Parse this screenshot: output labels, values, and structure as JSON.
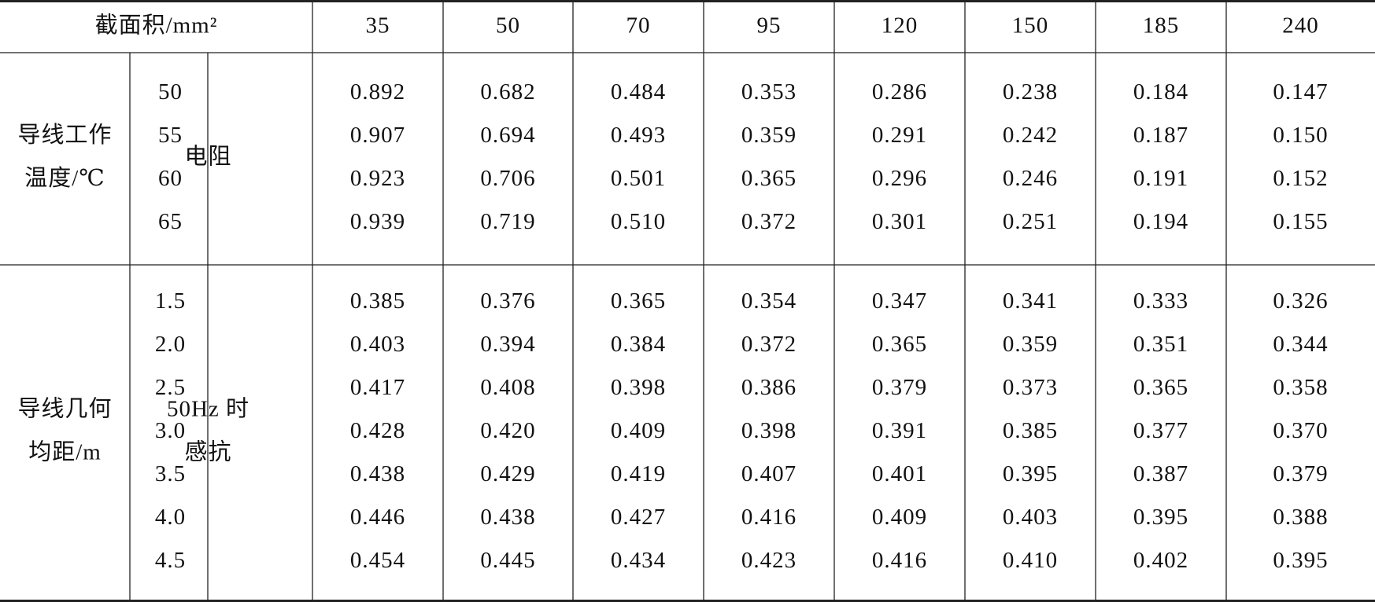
{
  "table": {
    "header": {
      "label": "截面积/mm²",
      "columns": [
        "35",
        "50",
        "70",
        "95",
        "120",
        "150",
        "185",
        "240"
      ]
    },
    "groups": [
      {
        "label": [
          "导线工作",
          "温度/℃"
        ],
        "quantity": [
          "电阻"
        ],
        "rows": [
          {
            "key": "50",
            "values": [
              "0.892",
              "0.682",
              "0.484",
              "0.353",
              "0.286",
              "0.238",
              "0.184",
              "0.147"
            ]
          },
          {
            "key": "55",
            "values": [
              "0.907",
              "0.694",
              "0.493",
              "0.359",
              "0.291",
              "0.242",
              "0.187",
              "0.150"
            ]
          },
          {
            "key": "60",
            "values": [
              "0.923",
              "0.706",
              "0.501",
              "0.365",
              "0.296",
              "0.246",
              "0.191",
              "0.152"
            ]
          },
          {
            "key": "65",
            "values": [
              "0.939",
              "0.719",
              "0.510",
              "0.372",
              "0.301",
              "0.251",
              "0.194",
              "0.155"
            ]
          }
        ]
      },
      {
        "label": [
          "导线几何",
          "均距/m"
        ],
        "quantity": [
          "50Hz 时",
          "感抗"
        ],
        "rows": [
          {
            "key": "1.5",
            "values": [
              "0.385",
              "0.376",
              "0.365",
              "0.354",
              "0.347",
              "0.341",
              "0.333",
              "0.326"
            ]
          },
          {
            "key": "2.0",
            "values": [
              "0.403",
              "0.394",
              "0.384",
              "0.372",
              "0.365",
              "0.359",
              "0.351",
              "0.344"
            ]
          },
          {
            "key": "2.5",
            "values": [
              "0.417",
              "0.408",
              "0.398",
              "0.386",
              "0.379",
              "0.373",
              "0.365",
              "0.358"
            ]
          },
          {
            "key": "3.0",
            "values": [
              "0.428",
              "0.420",
              "0.409",
              "0.398",
              "0.391",
              "0.385",
              "0.377",
              "0.370"
            ]
          },
          {
            "key": "3.5",
            "values": [
              "0.438",
              "0.429",
              "0.419",
              "0.407",
              "0.401",
              "0.395",
              "0.387",
              "0.379"
            ]
          },
          {
            "key": "4.0",
            "values": [
              "0.446",
              "0.438",
              "0.427",
              "0.416",
              "0.409",
              "0.403",
              "0.395",
              "0.388"
            ]
          },
          {
            "key": "4.5",
            "values": [
              "0.454",
              "0.445",
              "0.434",
              "0.423",
              "0.416",
              "0.410",
              "0.402",
              "0.395"
            ]
          }
        ]
      }
    ]
  }
}
